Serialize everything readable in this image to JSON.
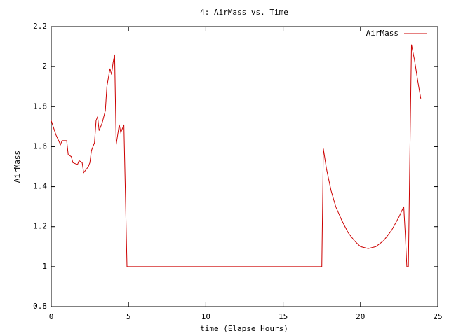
{
  "chart_data": {
    "type": "line",
    "title": "4: AirMass vs. Time",
    "xlabel": "time (Elapse Hours)",
    "ylabel": "AirMass",
    "x": [
      0.0,
      0.3,
      0.6,
      0.7,
      1.0,
      1.1,
      1.3,
      1.4,
      1.7,
      1.8,
      2.0,
      2.1,
      2.4,
      2.5,
      2.6,
      2.8,
      2.9,
      3.0,
      3.1,
      3.3,
      3.5,
      3.6,
      3.8,
      3.9,
      4.0,
      4.1,
      4.2,
      4.3,
      4.4,
      4.5,
      4.7,
      4.9,
      17.5,
      17.6,
      17.8,
      18.1,
      18.4,
      18.8,
      19.2,
      19.6,
      20.0,
      20.5,
      21.0,
      21.5,
      22.0,
      22.5,
      22.8,
      22.9,
      23.0,
      23.1,
      23.2,
      23.3,
      23.5,
      23.7,
      23.9
    ],
    "series": [
      {
        "name": "AirMass",
        "color": "#cc0000",
        "values": [
          1.73,
          1.66,
          1.61,
          1.63,
          1.63,
          1.56,
          1.55,
          1.52,
          1.51,
          1.53,
          1.52,
          1.47,
          1.5,
          1.52,
          1.58,
          1.62,
          1.73,
          1.75,
          1.68,
          1.72,
          1.78,
          1.9,
          1.99,
          1.96,
          2.02,
          2.06,
          1.61,
          1.66,
          1.71,
          1.67,
          1.71,
          1.0,
          1.0,
          1.59,
          1.49,
          1.38,
          1.3,
          1.23,
          1.17,
          1.13,
          1.1,
          1.09,
          1.1,
          1.13,
          1.18,
          1.25,
          1.3,
          1.16,
          1.0,
          1.0,
          1.58,
          2.11,
          2.03,
          1.93,
          1.84
        ]
      }
    ],
    "xlim": [
      0,
      25
    ],
    "ylim": [
      0.8,
      2.2
    ],
    "xticks": [
      0,
      5,
      10,
      15,
      20,
      25
    ],
    "yticks": [
      0.8,
      1,
      1.2,
      1.4,
      1.6,
      1.8,
      2,
      2.2
    ],
    "legend": "top-right",
    "grid": false
  }
}
